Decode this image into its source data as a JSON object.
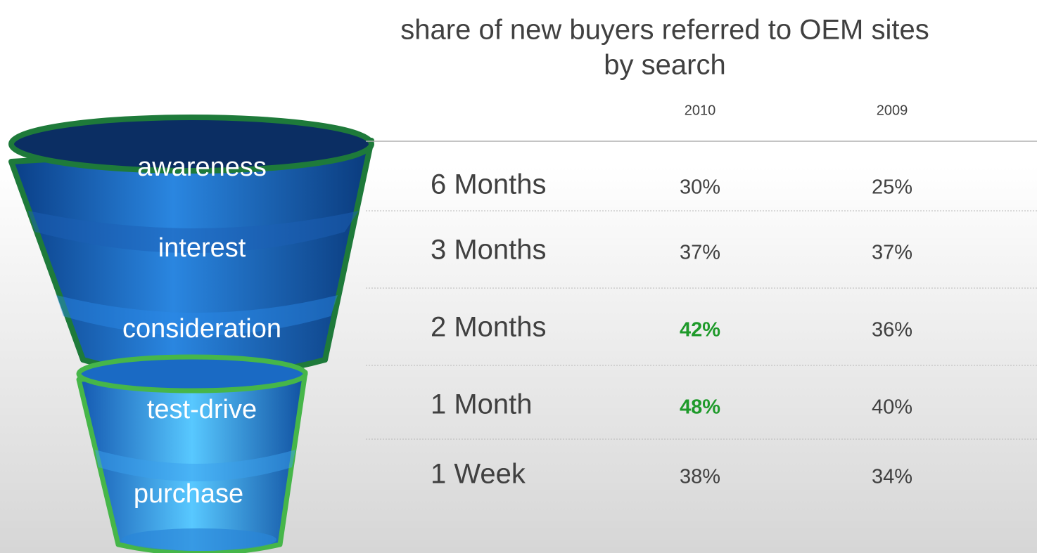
{
  "title": {
    "lines": [
      "share of new buyers referred to OEM sites",
      "by search"
    ]
  },
  "funnel": {
    "stages": [
      "awareness",
      "interest",
      "consideration",
      "test-drive",
      "purchase"
    ]
  },
  "table": {
    "columns": [
      "2010",
      "2009"
    ],
    "emphasis_color": "#1e9a2a",
    "rows": [
      {
        "period": "6 Months",
        "cells": [
          {
            "text": "30%"
          },
          {
            "text": "25%"
          }
        ]
      },
      {
        "period": "3 Months",
        "cells": [
          {
            "text": "37%"
          },
          {
            "text": "37%"
          }
        ]
      },
      {
        "period": "2 Months",
        "cells": [
          {
            "text": "42%",
            "emphasis": true
          },
          {
            "text": "36%"
          }
        ]
      },
      {
        "period": "1 Month",
        "cells": [
          {
            "text": "48%",
            "emphasis": true
          },
          {
            "text": "40%"
          }
        ]
      },
      {
        "period": "1 Week",
        "cells": [
          {
            "text": "38%"
          },
          {
            "text": "34%"
          }
        ]
      }
    ]
  }
}
